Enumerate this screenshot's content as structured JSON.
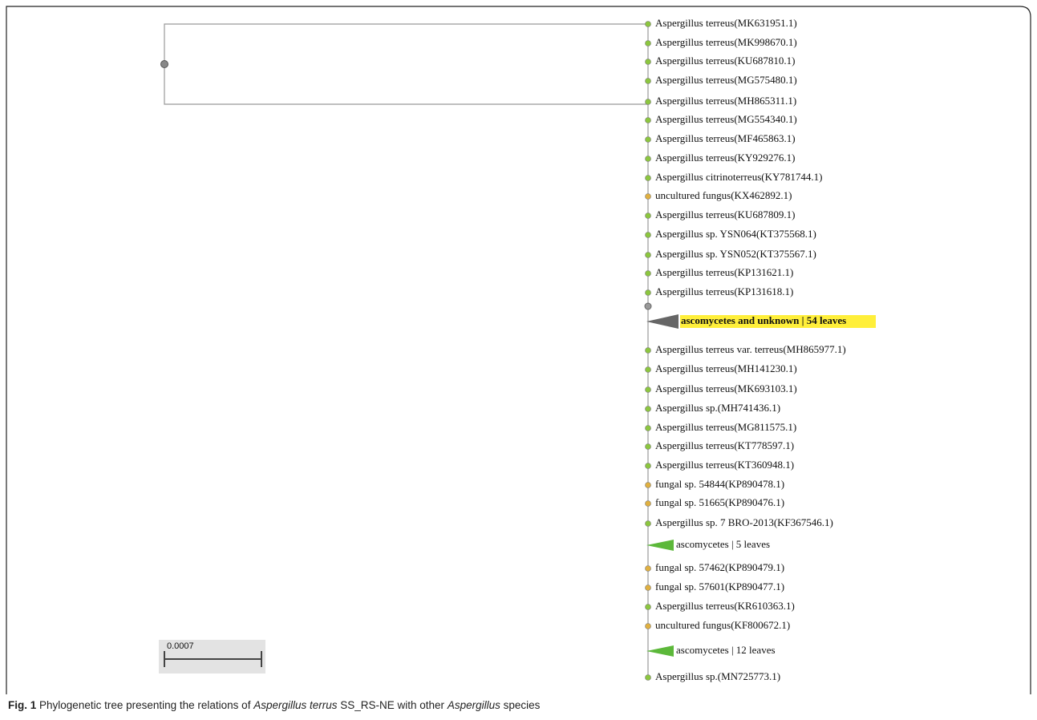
{
  "tree": {
    "rows": [
      {
        "label": "Aspergillus terreus(MK631951.1)",
        "kind": "leaf",
        "color": "#8cc63f"
      },
      {
        "label": "Aspergillus terreus(MK998670.1)",
        "kind": "leaf",
        "color": "#8cc63f"
      },
      {
        "label": "Aspergillus terreus(KU687810.1)",
        "kind": "leaf",
        "color": "#8cc63f"
      },
      {
        "label": "Aspergillus terreus(MG575480.1)",
        "kind": "leaf",
        "color": "#8cc63f"
      },
      {
        "label": "Aspergillus terreus(MH865311.1)",
        "kind": "leaf",
        "color": "#8cc63f"
      },
      {
        "label": "Aspergillus terreus(MG554340.1)",
        "kind": "leaf",
        "color": "#8cc63f"
      },
      {
        "label": "Aspergillus terreus(MF465863.1)",
        "kind": "leaf",
        "color": "#8cc63f"
      },
      {
        "label": "Aspergillus terreus(KY929276.1)",
        "kind": "leaf",
        "color": "#8cc63f"
      },
      {
        "label": "Aspergillus citrinoterreus(KY781744.1)",
        "kind": "leaf",
        "color": "#8cc63f"
      },
      {
        "label": "uncultured fungus(KX462892.1)",
        "kind": "leaf",
        "color": "#e0b040"
      },
      {
        "label": "Aspergillus terreus(KU687809.1)",
        "kind": "leaf",
        "color": "#8cc63f"
      },
      {
        "label": "Aspergillus sp. YSN064(KT375568.1)",
        "kind": "leaf",
        "color": "#8cc63f"
      },
      {
        "label": "Aspergillus sp. YSN052(KT375567.1)",
        "kind": "leaf",
        "color": "#8cc63f"
      },
      {
        "label": "Aspergillus terreus(KP131621.1)",
        "kind": "leaf",
        "color": "#8cc63f"
      },
      {
        "label": "Aspergillus terreus(KP131618.1)",
        "kind": "leaf",
        "color": "#8cc63f"
      },
      {
        "label": "ascomycetes and unknown | 54 leaves",
        "kind": "clade",
        "color": "#666666"
      },
      {
        "label": "Aspergillus terreus var. terreus(MH865977.1)",
        "kind": "leaf",
        "color": "#8cc63f"
      },
      {
        "label": "Aspergillus terreus(MH141230.1)",
        "kind": "leaf",
        "color": "#8cc63f"
      },
      {
        "label": "Aspergillus terreus(MK693103.1)",
        "kind": "leaf",
        "color": "#8cc63f"
      },
      {
        "label": "Aspergillus sp.(MH741436.1)",
        "kind": "leaf",
        "color": "#8cc63f"
      },
      {
        "label": "Aspergillus terreus(MG811575.1)",
        "kind": "leaf",
        "color": "#8cc63f"
      },
      {
        "label": "Aspergillus terreus(KT778597.1)",
        "kind": "leaf",
        "color": "#8cc63f"
      },
      {
        "label": "Aspergillus terreus(KT360948.1)",
        "kind": "leaf",
        "color": "#8cc63f"
      },
      {
        "label": "fungal sp. 54844(KP890478.1)",
        "kind": "leaf",
        "color": "#e0b040"
      },
      {
        "label": "fungal sp. 51665(KP890476.1)",
        "kind": "leaf",
        "color": "#e0b040"
      },
      {
        "label": "Aspergillus sp. 7 BRO-2013(KF367546.1)",
        "kind": "leaf",
        "color": "#8cc63f"
      },
      {
        "label": "ascomycetes | 5 leaves",
        "kind": "clade",
        "color": "#5cb83a"
      },
      {
        "label": "fungal sp. 57462(KP890479.1)",
        "kind": "leaf",
        "color": "#e0b040"
      },
      {
        "label": "fungal sp. 57601(KP890477.1)",
        "kind": "leaf",
        "color": "#e0b040"
      },
      {
        "label": "Aspergillus terreus(KR610363.1)",
        "kind": "leaf",
        "color": "#8cc63f"
      },
      {
        "label": "uncultured fungus(KF800672.1)",
        "kind": "leaf",
        "color": "#e0b040"
      },
      {
        "label": "ascomycetes | 12 leaves",
        "kind": "clade",
        "color": "#5cb83a"
      },
      {
        "label": "Aspergillus sp.(MN725773.1)",
        "kind": "leaf",
        "color": "#8cc63f"
      }
    ],
    "scale_bar": "0.0007"
  },
  "caption": {
    "fig": "Fig. 1",
    "parts": [
      "Phylogenetic tree presenting the relations of ",
      "Aspergillus terrus",
      " SS_RS-NE with other ",
      "Aspergillus",
      " species"
    ]
  }
}
